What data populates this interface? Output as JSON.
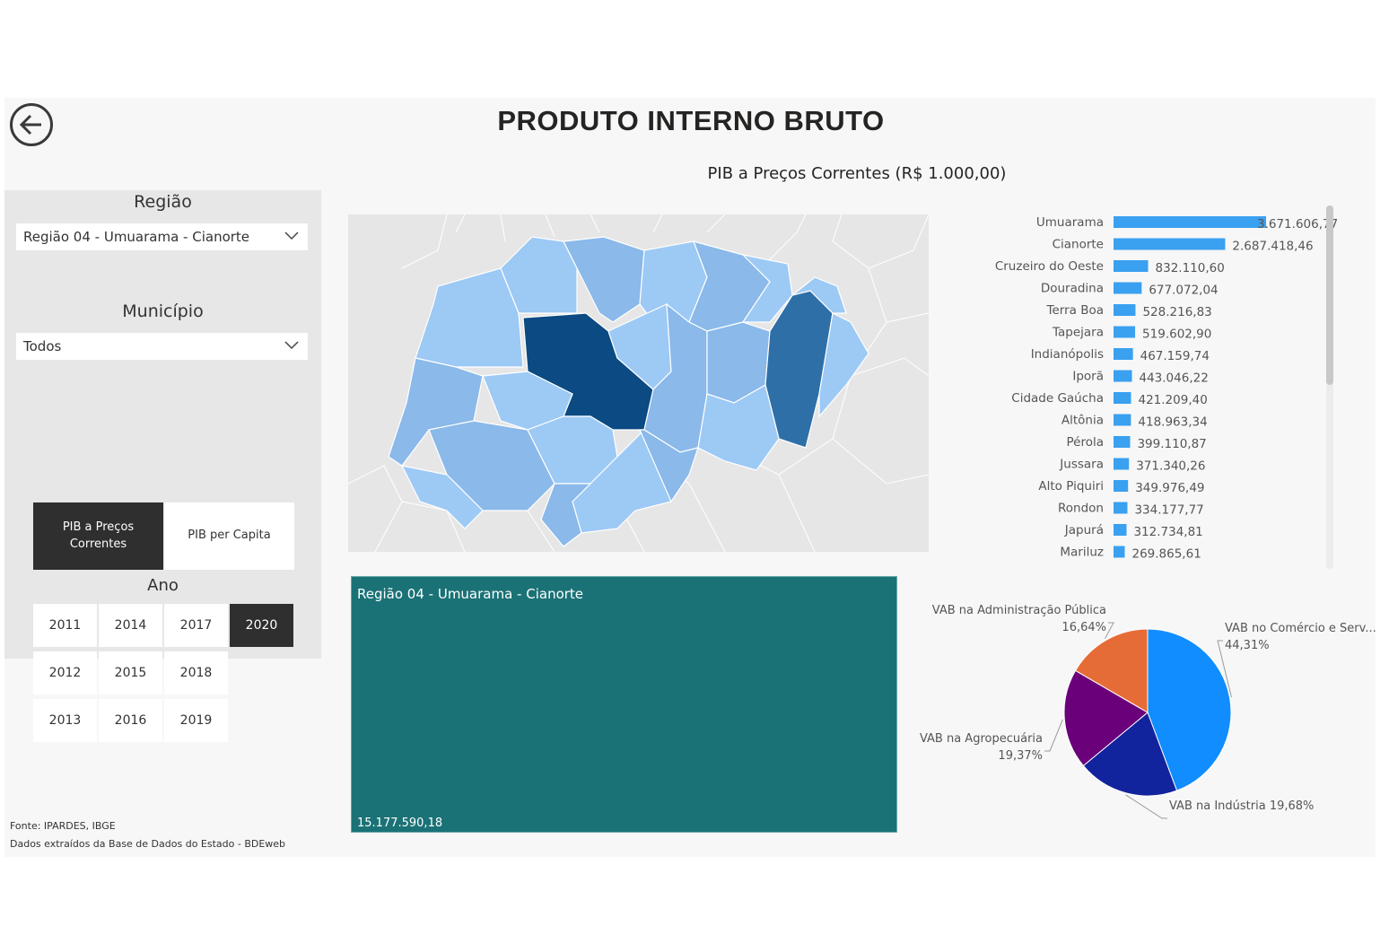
{
  "header": {
    "title": "PRODUTO INTERNO BRUTO"
  },
  "filters": {
    "regiao": {
      "label": "Região",
      "selected": "Região 04 - Umuarama - Cianorte"
    },
    "municipio": {
      "label": "Município",
      "selected": "Todos"
    },
    "measures": [
      {
        "label": "PIB a Preços Correntes",
        "selected": true
      },
      {
        "label": "PIB per Capita",
        "selected": false
      }
    ],
    "ano": {
      "label": "Ano",
      "years": [
        {
          "label": "2011",
          "selected": false
        },
        {
          "label": "2014",
          "selected": false
        },
        {
          "label": "2017",
          "selected": false
        },
        {
          "label": "2020",
          "selected": true
        },
        {
          "label": "2012",
          "selected": false
        },
        {
          "label": "2015",
          "selected": false
        },
        {
          "label": "2018",
          "selected": false
        },
        {
          "label": "2013",
          "selected": false
        },
        {
          "label": "2016",
          "selected": false
        },
        {
          "label": "2019",
          "selected": false
        }
      ]
    }
  },
  "main": {
    "chart_title": "PIB a Preços Correntes (R$ 1.000,00)",
    "card": {
      "title": "Região 04 - Umuarama - Cianorte",
      "value": "15.177.590,18"
    }
  },
  "footer": {
    "source": "Fonte: IPARDES, IBGE",
    "note": "Dados extraídos da Base de Dados do Estado - BDEweb"
  },
  "colors": {
    "bar": "#3aa0f0",
    "card": "#1a7276",
    "dark_button": "#2f2f2f",
    "map_dark": "#0b4a82",
    "map_mid": "#2f6fa8",
    "map_light": "#9dc9f5",
    "map_inactive": "#e6e6e6"
  },
  "chart_data": [
    {
      "type": "bar",
      "orientation": "horizontal",
      "categories": [
        "Umuarama",
        "Cianorte",
        "Cruzeiro do Oeste",
        "Douradina",
        "Terra Boa",
        "Tapejara",
        "Indianópolis",
        "Iporã",
        "Cidade Gaúcha",
        "Altônia",
        "Pérola",
        "Jussara",
        "Alto Piquiri",
        "Rondon",
        "Japurá",
        "Mariluz"
      ],
      "values": [
        3671606.77,
        2687418.46,
        832110.6,
        677072.04,
        528216.83,
        519602.9,
        467159.74,
        443046.22,
        421209.4,
        418963.34,
        399110.87,
        371340.26,
        349976.49,
        334177.77,
        312734.81,
        269865.61
      ],
      "labels": [
        "3.671.606,77",
        "2.687.418,46",
        "832.110,60",
        "677.072,04",
        "528.216,83",
        "519.602,90",
        "467.159,74",
        "443.046,22",
        "421.209,40",
        "418.963,34",
        "399.110,87",
        "371.340,26",
        "349.976,49",
        "334.177,77",
        "312.734,81",
        "269.865,61"
      ]
    },
    {
      "type": "pie",
      "slices": [
        {
          "label": "VAB no Comércio e Serv...",
          "value": 44.31,
          "pct_label": "44,31%",
          "color": "#118dff"
        },
        {
          "label": "VAB na Indústria",
          "value": 19.68,
          "pct_label": "19,68%",
          "color": "#12239e"
        },
        {
          "label": "VAB na Agropecuária",
          "value": 19.37,
          "pct_label": "19,37%",
          "color": "#6b007b"
        },
        {
          "label": "VAB na Administração Pública",
          "value": 16.64,
          "pct_label": "16,64%",
          "color": "#e66c37"
        }
      ]
    }
  ]
}
